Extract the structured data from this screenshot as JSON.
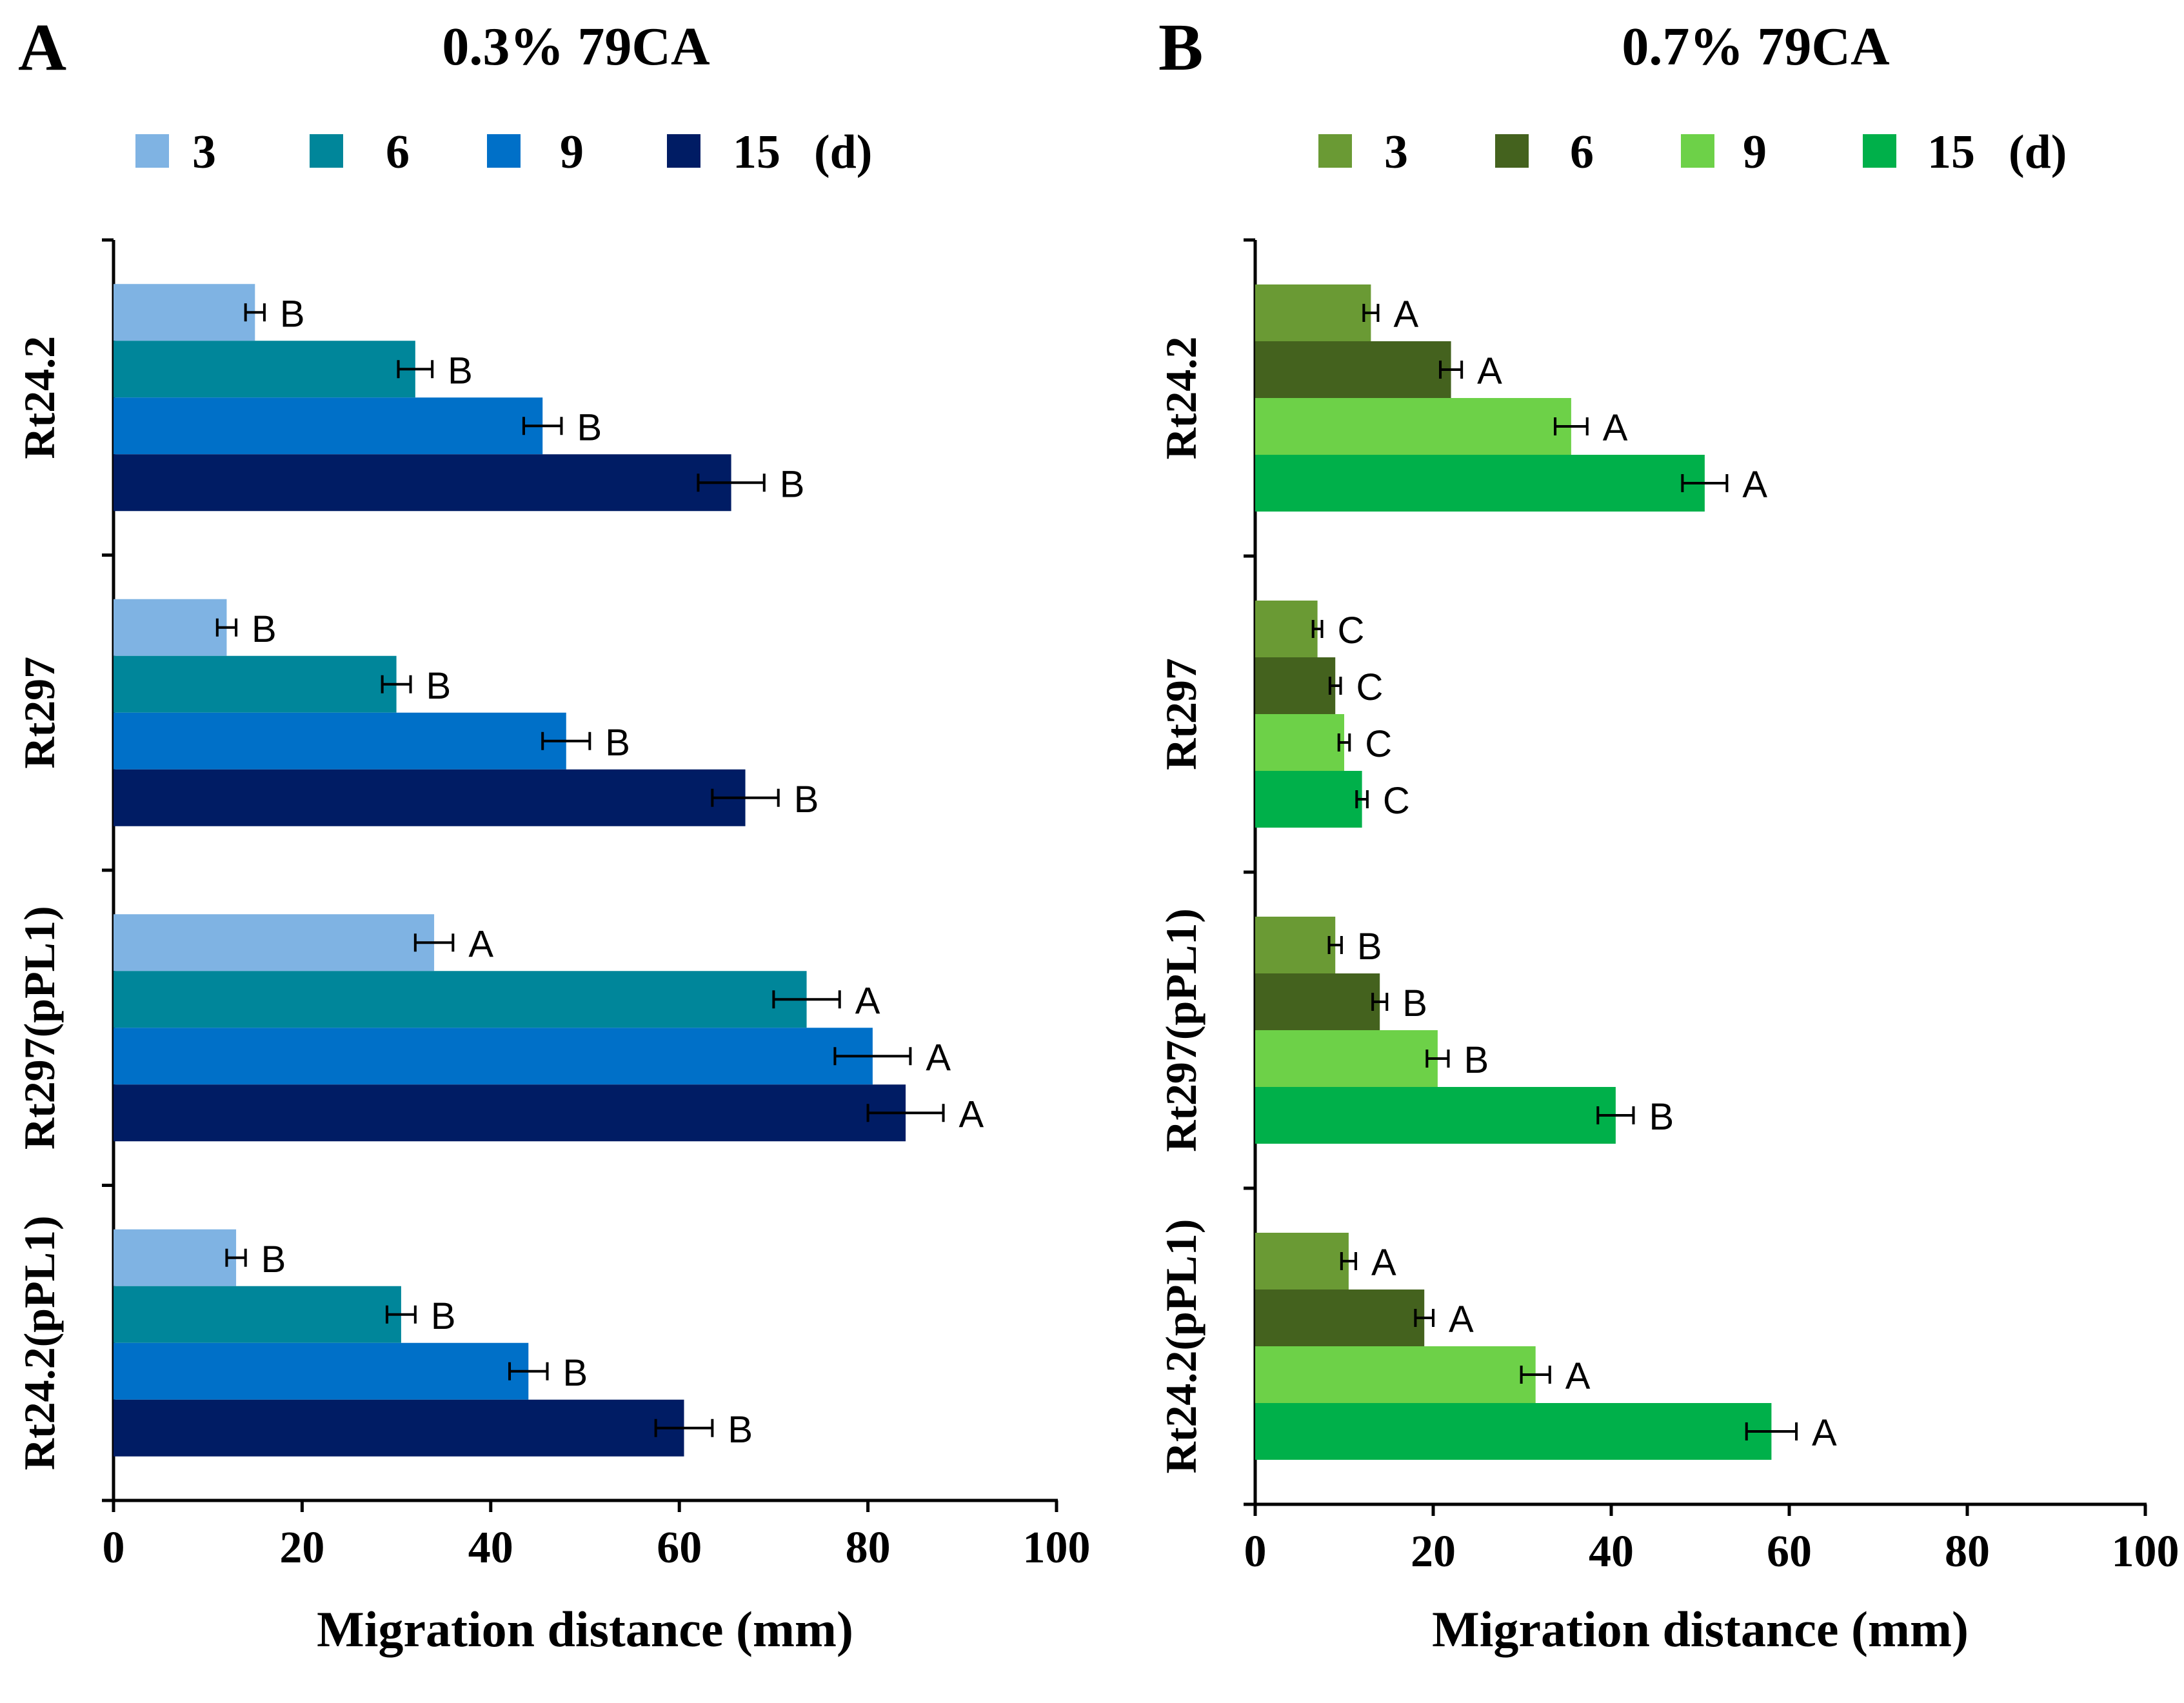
{
  "chart_data": [
    {
      "type": "bar",
      "orientation": "horizontal",
      "panel_label": "A",
      "title": "0.3% 79CA",
      "xlabel": "Migration distance (mm)",
      "ylabel": "",
      "xlim": [
        0,
        100
      ],
      "xticks": [
        "0",
        "20",
        "40",
        "60",
        "80",
        "100"
      ],
      "categories": [
        "Rt24.2",
        "Rt297",
        "Rt297(pPL1)",
        "Rt24.2(pPL1)"
      ],
      "legend_unit": "(d)",
      "legend_position": "top",
      "series": [
        {
          "name": "3",
          "color": "#7fb3e3",
          "values": [
            15,
            12,
            34,
            13
          ],
          "errors": [
            1,
            1,
            2,
            1
          ],
          "letters": [
            "B",
            "B",
            "A",
            "B"
          ]
        },
        {
          "name": "6",
          "color": "#00869a",
          "values": [
            32,
            30,
            73.5,
            30.5
          ],
          "errors": [
            1.8,
            1.5,
            3.5,
            1.5
          ],
          "letters": [
            "B",
            "B",
            "A",
            "B"
          ]
        },
        {
          "name": "9",
          "color": "#0070c8",
          "values": [
            45.5,
            48,
            80.5,
            44
          ],
          "errors": [
            2,
            2.5,
            4,
            2
          ],
          "letters": [
            "B",
            "B",
            "A",
            "B"
          ]
        },
        {
          "name": "15",
          "color": "#001c64",
          "values": [
            65.5,
            67,
            84,
            60.5
          ],
          "errors": [
            3.5,
            3.5,
            4,
            3
          ],
          "letters": [
            "B",
            "B",
            "A",
            "B"
          ]
        }
      ]
    },
    {
      "type": "bar",
      "orientation": "horizontal",
      "panel_label": "B",
      "title": "0.7% 79CA",
      "xlabel": "Migration distance (mm)",
      "ylabel": "",
      "xlim": [
        0,
        100
      ],
      "xticks": [
        "0",
        "20",
        "40",
        "60",
        "80",
        "100"
      ],
      "categories": [
        "Rt24.2",
        "Rt297",
        "Rt297(pPL1)",
        "Rt24.2(pPL1)"
      ],
      "legend_unit": "(d)",
      "legend_position": "top",
      "series": [
        {
          "name": "3",
          "color": "#6a9a34",
          "values": [
            13,
            7,
            9,
            10.5
          ],
          "errors": [
            0.8,
            0.5,
            0.7,
            0.8
          ],
          "letters": [
            "A",
            "C",
            "B",
            "A"
          ]
        },
        {
          "name": "6",
          "color": "#44621e",
          "values": [
            22,
            9,
            14,
            19
          ],
          "errors": [
            1.2,
            0.6,
            0.8,
            1
          ],
          "letters": [
            "A",
            "C",
            "B",
            "A"
          ]
        },
        {
          "name": "9",
          "color": "#6dd148",
          "values": [
            35.5,
            10,
            20.5,
            31.5
          ],
          "errors": [
            1.8,
            0.6,
            1.2,
            1.6
          ],
          "letters": [
            "A",
            "C",
            "B",
            "A"
          ]
        },
        {
          "name": "15",
          "color": "#00b04a",
          "values": [
            50.5,
            12,
            40.5,
            58
          ],
          "errors": [
            2.5,
            0.6,
            2,
            2.8
          ],
          "letters": [
            "A",
            "C",
            "B",
            "A"
          ]
        }
      ]
    }
  ]
}
